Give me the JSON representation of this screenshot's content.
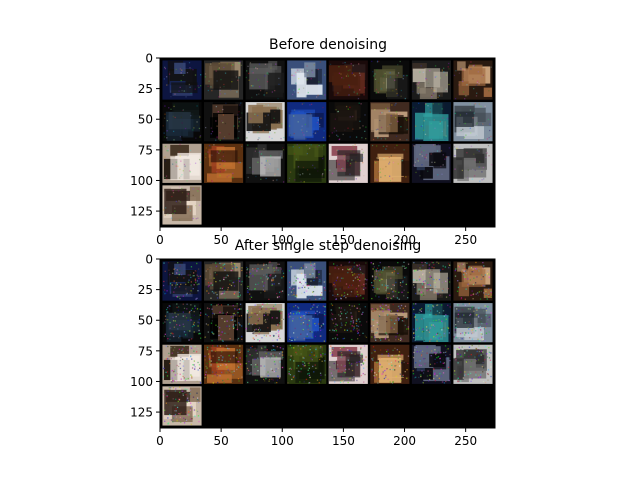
{
  "figure": {
    "background": "#ffffff"
  },
  "chart_data": [
    {
      "type": "heatmap",
      "title": "Before denoising",
      "xlim": [
        0,
        274
      ],
      "ylim": [
        138,
        0
      ],
      "xticks": [
        0,
        50,
        100,
        150,
        200,
        250
      ],
      "yticks": [
        0,
        25,
        50,
        75,
        100,
        125
      ],
      "grid": false,
      "image": {
        "grid_cols": 8,
        "tile_count": 25,
        "tile_size": 32,
        "tile_padding": 2,
        "description_colors": [
          "#0f1a4a",
          "#ffffff",
          "#2a2a2a",
          "#7a5a3a",
          "#1a3a8a"
        ]
      }
    },
    {
      "type": "heatmap",
      "title": "After single step denoising",
      "xlim": [
        0,
        274
      ],
      "ylim": [
        138,
        0
      ],
      "xticks": [
        0,
        50,
        100,
        150,
        200,
        250
      ],
      "yticks": [
        0,
        25,
        50,
        75,
        100,
        125
      ],
      "grid": false,
      "image": {
        "grid_cols": 8,
        "tile_count": 25,
        "tile_size": 32,
        "tile_padding": 2,
        "noisy": true
      }
    }
  ]
}
